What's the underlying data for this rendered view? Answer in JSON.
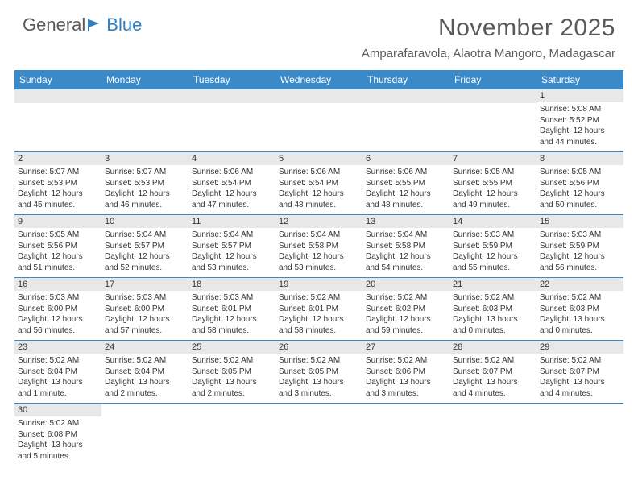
{
  "logo": {
    "text1": "General",
    "text2": "Blue"
  },
  "title": "November 2025",
  "location": "Amparafaravola, Alaotra Mangoro, Madagascar",
  "colors": {
    "header_bg": "#3a89c9",
    "header_text": "#ffffff",
    "daynum_bg": "#e8e8e8",
    "border": "#3a89c9",
    "body_text": "#333333",
    "title_text": "#5a5a5a"
  },
  "dow": [
    "Sunday",
    "Monday",
    "Tuesday",
    "Wednesday",
    "Thursday",
    "Friday",
    "Saturday"
  ],
  "weeks": [
    [
      null,
      null,
      null,
      null,
      null,
      null,
      {
        "n": "1",
        "sr": "5:08 AM",
        "ss": "5:52 PM",
        "dl": "12 hours and 44 minutes."
      }
    ],
    [
      {
        "n": "2",
        "sr": "5:07 AM",
        "ss": "5:53 PM",
        "dl": "12 hours and 45 minutes."
      },
      {
        "n": "3",
        "sr": "5:07 AM",
        "ss": "5:53 PM",
        "dl": "12 hours and 46 minutes."
      },
      {
        "n": "4",
        "sr": "5:06 AM",
        "ss": "5:54 PM",
        "dl": "12 hours and 47 minutes."
      },
      {
        "n": "5",
        "sr": "5:06 AM",
        "ss": "5:54 PM",
        "dl": "12 hours and 48 minutes."
      },
      {
        "n": "6",
        "sr": "5:06 AM",
        "ss": "5:55 PM",
        "dl": "12 hours and 48 minutes."
      },
      {
        "n": "7",
        "sr": "5:05 AM",
        "ss": "5:55 PM",
        "dl": "12 hours and 49 minutes."
      },
      {
        "n": "8",
        "sr": "5:05 AM",
        "ss": "5:56 PM",
        "dl": "12 hours and 50 minutes."
      }
    ],
    [
      {
        "n": "9",
        "sr": "5:05 AM",
        "ss": "5:56 PM",
        "dl": "12 hours and 51 minutes."
      },
      {
        "n": "10",
        "sr": "5:04 AM",
        "ss": "5:57 PM",
        "dl": "12 hours and 52 minutes."
      },
      {
        "n": "11",
        "sr": "5:04 AM",
        "ss": "5:57 PM",
        "dl": "12 hours and 53 minutes."
      },
      {
        "n": "12",
        "sr": "5:04 AM",
        "ss": "5:58 PM",
        "dl": "12 hours and 53 minutes."
      },
      {
        "n": "13",
        "sr": "5:04 AM",
        "ss": "5:58 PM",
        "dl": "12 hours and 54 minutes."
      },
      {
        "n": "14",
        "sr": "5:03 AM",
        "ss": "5:59 PM",
        "dl": "12 hours and 55 minutes."
      },
      {
        "n": "15",
        "sr": "5:03 AM",
        "ss": "5:59 PM",
        "dl": "12 hours and 56 minutes."
      }
    ],
    [
      {
        "n": "16",
        "sr": "5:03 AM",
        "ss": "6:00 PM",
        "dl": "12 hours and 56 minutes."
      },
      {
        "n": "17",
        "sr": "5:03 AM",
        "ss": "6:00 PM",
        "dl": "12 hours and 57 minutes."
      },
      {
        "n": "18",
        "sr": "5:03 AM",
        "ss": "6:01 PM",
        "dl": "12 hours and 58 minutes."
      },
      {
        "n": "19",
        "sr": "5:02 AM",
        "ss": "6:01 PM",
        "dl": "12 hours and 58 minutes."
      },
      {
        "n": "20",
        "sr": "5:02 AM",
        "ss": "6:02 PM",
        "dl": "12 hours and 59 minutes."
      },
      {
        "n": "21",
        "sr": "5:02 AM",
        "ss": "6:03 PM",
        "dl": "13 hours and 0 minutes."
      },
      {
        "n": "22",
        "sr": "5:02 AM",
        "ss": "6:03 PM",
        "dl": "13 hours and 0 minutes."
      }
    ],
    [
      {
        "n": "23",
        "sr": "5:02 AM",
        "ss": "6:04 PM",
        "dl": "13 hours and 1 minute."
      },
      {
        "n": "24",
        "sr": "5:02 AM",
        "ss": "6:04 PM",
        "dl": "13 hours and 2 minutes."
      },
      {
        "n": "25",
        "sr": "5:02 AM",
        "ss": "6:05 PM",
        "dl": "13 hours and 2 minutes."
      },
      {
        "n": "26",
        "sr": "5:02 AM",
        "ss": "6:05 PM",
        "dl": "13 hours and 3 minutes."
      },
      {
        "n": "27",
        "sr": "5:02 AM",
        "ss": "6:06 PM",
        "dl": "13 hours and 3 minutes."
      },
      {
        "n": "28",
        "sr": "5:02 AM",
        "ss": "6:07 PM",
        "dl": "13 hours and 4 minutes."
      },
      {
        "n": "29",
        "sr": "5:02 AM",
        "ss": "6:07 PM",
        "dl": "13 hours and 4 minutes."
      }
    ],
    [
      {
        "n": "30",
        "sr": "5:02 AM",
        "ss": "6:08 PM",
        "dl": "13 hours and 5 minutes."
      },
      null,
      null,
      null,
      null,
      null,
      null
    ]
  ],
  "labels": {
    "sunrise": "Sunrise: ",
    "sunset": "Sunset: ",
    "daylight": "Daylight: "
  }
}
